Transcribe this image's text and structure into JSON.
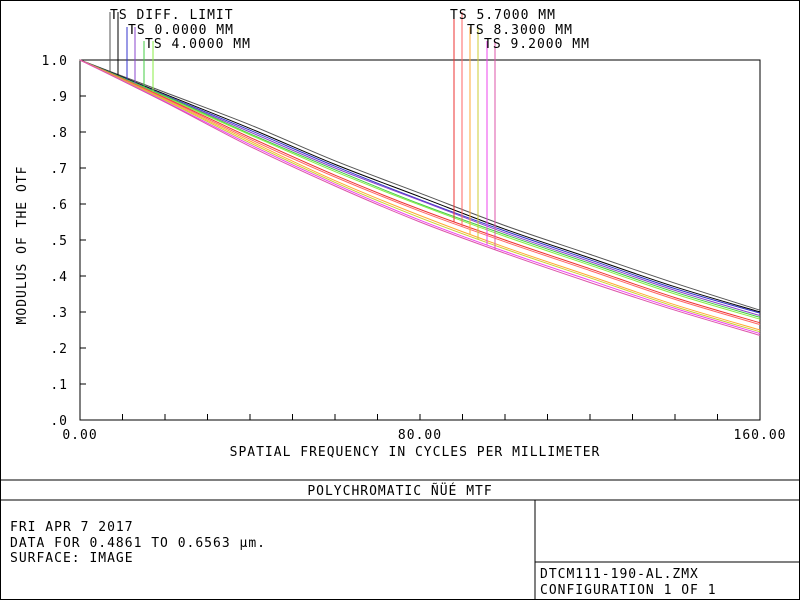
{
  "legend": {
    "left_column": [
      "TS DIFF. LIMIT",
      "TS 0.0000 MM",
      "TS 4.0000 MM"
    ],
    "right_column": [
      "TS 5.7000 MM",
      "TS 8.3000 MM",
      "TS 9.2000 MM"
    ]
  },
  "footer": {
    "title": "POLYCHROMATIC ÑÜÉ  MTF",
    "date": "FRI APR 7 2017",
    "data_line": "DATA FOR 0.4861 TO 0.6563 µm.",
    "surface": "SURFACE: IMAGE",
    "filename": "DTCM111-190-AL.ZMX",
    "configuration": "CONFIGURATION 1 OF 1"
  },
  "chart_data": {
    "type": "line",
    "xlabel": "SPATIAL FREQUENCY IN CYCLES PER MILLIMETER",
    "ylabel": "MODULUS OF THE OTF",
    "xlim": [
      0,
      160
    ],
    "ylim": [
      0,
      1.0
    ],
    "x_tick_labels": [
      "0.00",
      "80.00",
      "160.00"
    ],
    "y_tick_labels": [
      ".0",
      ".1",
      ".2",
      ".3",
      ".4",
      ".5",
      ".6",
      ".7",
      ".8",
      ".9",
      "1.0"
    ],
    "x": [
      0,
      20,
      40,
      60,
      80,
      100,
      120,
      140,
      160
    ],
    "series": [
      {
        "name": "TS DIFF. LIMIT",
        "color": "#555555",
        "values": [
          1.0,
          0.91,
          0.82,
          0.72,
          0.63,
          0.54,
          0.46,
          0.38,
          0.305
        ]
      },
      {
        "name": "TS DIFF. LIMIT",
        "color": "#000000",
        "values": [
          1.0,
          0.905,
          0.81,
          0.71,
          0.62,
          0.53,
          0.45,
          0.37,
          0.3
        ]
      },
      {
        "name": "TS 0.0000 MM",
        "color": "#3333cc",
        "values": [
          1.0,
          0.902,
          0.805,
          0.705,
          0.612,
          0.525,
          0.445,
          0.365,
          0.297
        ]
      },
      {
        "name": "TS 0.0000 MM",
        "color": "#8844cc",
        "values": [
          1.0,
          0.9,
          0.8,
          0.7,
          0.61,
          0.52,
          0.44,
          0.36,
          0.29
        ]
      },
      {
        "name": "TS 4.0000 MM",
        "color": "#44cc44",
        "values": [
          1.0,
          0.9,
          0.795,
          0.695,
          0.6,
          0.515,
          0.435,
          0.355,
          0.285
        ]
      },
      {
        "name": "TS 4.0000 MM",
        "color": "#88ee44",
        "values": [
          1.0,
          0.897,
          0.792,
          0.69,
          0.597,
          0.51,
          0.43,
          0.35,
          0.28
        ]
      },
      {
        "name": "TS 5.7000 MM",
        "color": "#ee3333",
        "values": [
          1.0,
          0.895,
          0.785,
          0.68,
          0.585,
          0.5,
          0.42,
          0.34,
          0.27
        ]
      },
      {
        "name": "TS 5.7000 MM",
        "color": "#ff6666",
        "values": [
          1.0,
          0.893,
          0.78,
          0.675,
          0.58,
          0.495,
          0.415,
          0.335,
          0.265
        ]
      },
      {
        "name": "TS 8.3000 MM",
        "color": "#ffaa33",
        "values": [
          1.0,
          0.89,
          0.775,
          0.665,
          0.568,
          0.48,
          0.4,
          0.32,
          0.25
        ]
      },
      {
        "name": "TS 8.3000 MM",
        "color": "#cccc33",
        "values": [
          1.0,
          0.888,
          0.77,
          0.66,
          0.562,
          0.475,
          0.395,
          0.315,
          0.245
        ]
      },
      {
        "name": "TS 9.2000 MM",
        "color": "#ee44ee",
        "values": [
          1.0,
          0.885,
          0.765,
          0.655,
          0.555,
          0.468,
          0.388,
          0.31,
          0.24
        ]
      },
      {
        "name": "TS 9.2000 MM",
        "color": "#dd55aa",
        "values": [
          1.0,
          0.883,
          0.76,
          0.65,
          0.55,
          0.463,
          0.382,
          0.305,
          0.235
        ]
      }
    ],
    "grid": false,
    "tick_marks": "inside, every 10 cycles/mm on x and every 0.1 on y"
  }
}
